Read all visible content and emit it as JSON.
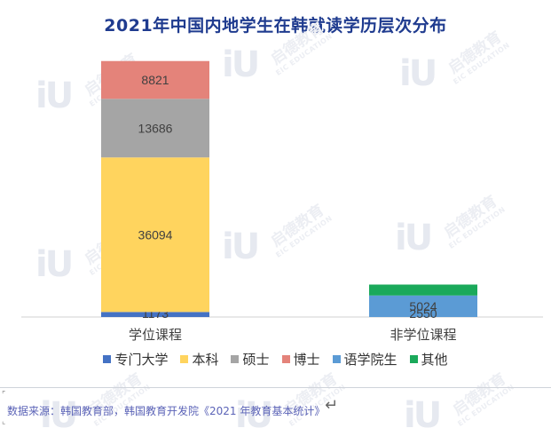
{
  "chart_data": {
    "type": "stacked-bar",
    "title": "2021年中国内地学生在韩就读学历层次分布",
    "categories": [
      "学位课程",
      "非学位课程"
    ],
    "series": [
      {
        "name": "专门大学",
        "color": "#4472c4",
        "values": [
          1173,
          0
        ]
      },
      {
        "name": "本科",
        "color": "#ffd45e",
        "values": [
          36094,
          0
        ]
      },
      {
        "name": "硕士",
        "color": "#a5a5a5",
        "values": [
          13686,
          0
        ]
      },
      {
        "name": "博士",
        "color": "#e4837a",
        "values": [
          8821,
          0
        ]
      },
      {
        "name": "语学院生",
        "color": "#5b9bd5",
        "values": [
          0,
          5024
        ]
      },
      {
        "name": "其他",
        "color": "#1aa95a",
        "values": [
          0,
          2550
        ]
      }
    ],
    "ylim": [
      0,
      62000
    ],
    "grid": false,
    "legend_position": "bottom"
  },
  "source_note": "数据来源：韩国教育部，韩国教育开发院《2021 年教育基本统计》",
  "watermark": {
    "brand": "启德教育",
    "brand_en": "EIC EDUCATION",
    "logo": "iU"
  }
}
